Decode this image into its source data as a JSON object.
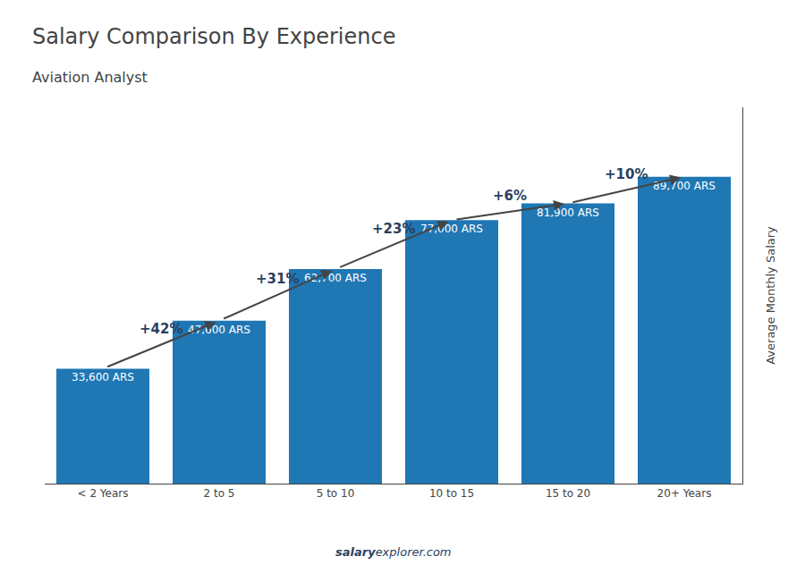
{
  "chart_data": {
    "type": "bar",
    "title": "Salary Comparison By Experience",
    "subtitle": "Aviation Analyst",
    "categories": [
      "< 2 Years",
      "2 to 5",
      "5 to 10",
      "10 to 15",
      "15 to 20",
      "20+ Years"
    ],
    "values": [
      33600,
      47600,
      62700,
      77000,
      81900,
      89700
    ],
    "value_labels": [
      "33,600 ARS",
      "47,600 ARS",
      "62,700 ARS",
      "77,000 ARS",
      "81,900 ARS",
      "89,700 ARS"
    ],
    "data_labels": true,
    "annotations": [
      "+42%",
      "+31%",
      "+23%",
      "+6%",
      "+10%"
    ],
    "y_label": "Average Monthly Salary",
    "watermark": [
      "salary",
      "explorer.com"
    ],
    "ylim": [
      0,
      110000
    ],
    "yticks": [],
    "tick_labels": "x",
    "grid": false
  }
}
